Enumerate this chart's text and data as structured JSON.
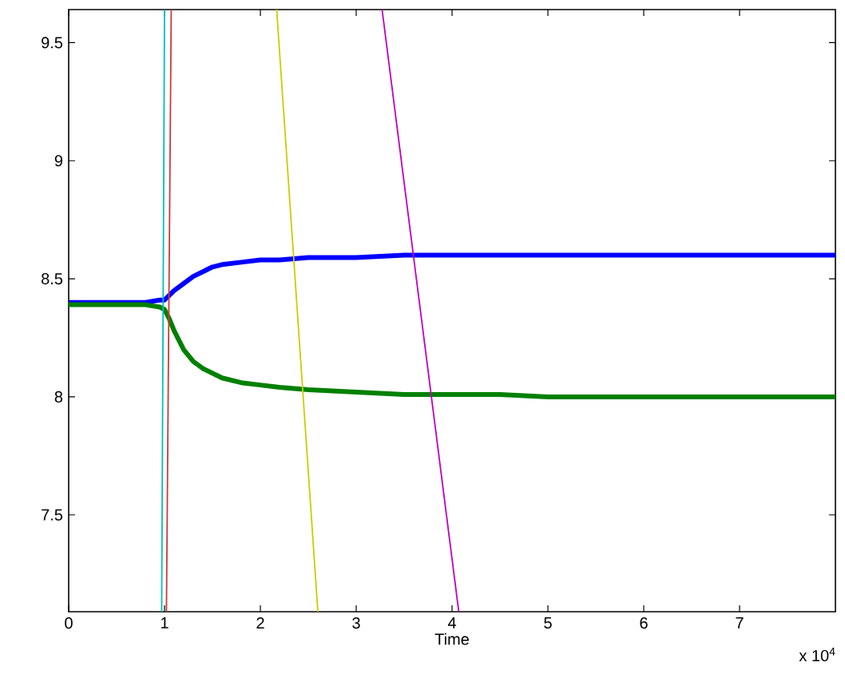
{
  "chart_data": {
    "type": "line",
    "xlabel": "Time",
    "annotations": [
      "x 10$^{4}$"
    ],
    "xlim": [
      0,
      8
    ],
    "ylim": [
      7.09,
      9.64
    ],
    "xticks": [
      0,
      1,
      2,
      3,
      4,
      5,
      6,
      7
    ],
    "yticks": [
      7.5,
      8,
      8.5,
      9,
      9.5
    ],
    "series": [
      {
        "color": "#0000ff",
        "x": [
          0,
          0.2,
          0.4,
          0.6,
          0.8,
          0.95,
          1,
          1.05,
          1.1,
          1.2,
          1.3,
          1.4,
          1.5,
          1.6,
          1.8,
          2,
          2.2,
          2.5,
          3,
          3.5,
          4,
          4.5,
          5,
          5.5,
          6,
          6.5,
          7,
          7.5,
          8
        ],
        "values": [
          8.4,
          8.4,
          8.4,
          8.4,
          8.4,
          8.41,
          8.41,
          8.43,
          8.45,
          8.48,
          8.51,
          8.53,
          8.55,
          8.56,
          8.57,
          8.58,
          8.58,
          8.59,
          8.59,
          8.6,
          8.6,
          8.6,
          8.6,
          8.6,
          8.6,
          8.6,
          8.6,
          8.6,
          8.6
        ]
      },
      {
        "color": "#008000",
        "x": [
          0,
          0.2,
          0.4,
          0.6,
          0.8,
          0.95,
          1,
          1.05,
          1.1,
          1.2,
          1.3,
          1.4,
          1.5,
          1.6,
          1.8,
          2,
          2.2,
          2.5,
          3,
          3.5,
          4,
          4.5,
          5,
          5.5,
          6,
          6.5,
          7,
          7.5,
          8
        ],
        "values": [
          8.39,
          8.39,
          8.39,
          8.39,
          8.39,
          8.38,
          8.37,
          8.33,
          8.28,
          8.2,
          8.15,
          8.12,
          8.1,
          8.08,
          8.06,
          8.05,
          8.04,
          8.03,
          8.02,
          8.01,
          8.01,
          8.01,
          8.0,
          8.0,
          8.0,
          8.0,
          8.0,
          8.0,
          8.0
        ]
      },
      {
        "color": "#00bfbf",
        "x": [
          0.97,
          1.0
        ],
        "values": [
          7.09,
          9.64
        ]
      },
      {
        "color": "#cc3a3a",
        "x": [
          1.02,
          1.07
        ],
        "values": [
          7.09,
          9.64
        ]
      },
      {
        "color": "#cccc00",
        "x": [
          2.17,
          2.6
        ],
        "values": [
          9.64,
          7.09
        ]
      },
      {
        "color": "#bf00bf",
        "x": [
          3.27,
          4.07
        ],
        "values": [
          9.64,
          7.09
        ]
      }
    ]
  }
}
